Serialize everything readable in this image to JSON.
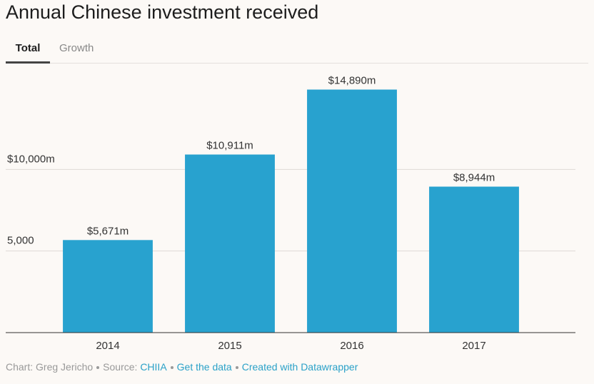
{
  "tabs": [
    "Total",
    "Growth"
  ],
  "footer": {
    "credit": "Chart: Greg Jericho",
    "source_label": "Source:",
    "source": "CHIIA",
    "links": [
      "Get the data",
      "Created with Datawrapper"
    ]
  },
  "chart_data": {
    "type": "bar",
    "title": "Annual Chinese investment received",
    "categories": [
      "2014",
      "2015",
      "2016",
      "2017"
    ],
    "values": [
      5671,
      10911,
      14890,
      8944
    ],
    "value_labels": [
      "$5,671m",
      "$10,911m",
      "$14,890m",
      "$8,944m"
    ],
    "color": "#28a2cf",
    "ylim": [
      0,
      15000
    ],
    "yticks": [
      {
        "value": 5000,
        "label": "5,000"
      },
      {
        "value": 10000,
        "label": "$10,000m"
      }
    ],
    "grid": true
  }
}
